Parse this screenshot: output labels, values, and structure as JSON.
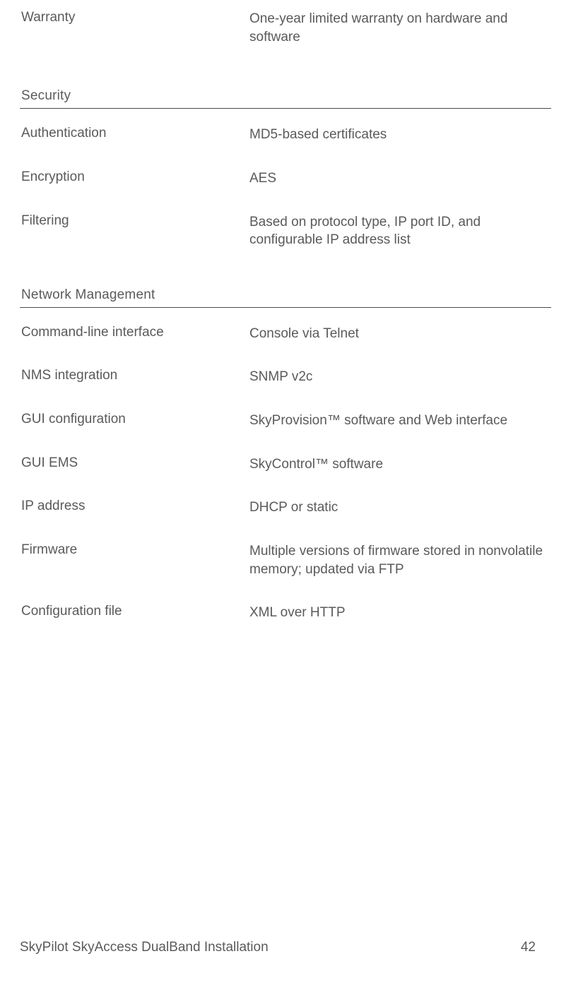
{
  "top": {
    "warranty_label": "Warranty",
    "warranty_value": "One-year limited warranty on hardware and software"
  },
  "security": {
    "header": "Security",
    "rows": [
      {
        "label": "Authentication",
        "value": "MD5-based certificates"
      },
      {
        "label": "Encryption",
        "value": "AES"
      },
      {
        "label": "Filtering",
        "value": "Based on protocol type, IP port ID, and configurable IP address list"
      }
    ]
  },
  "network": {
    "header": "Network Management",
    "rows": [
      {
        "label": "Command-line interface",
        "value": "Console via Telnet"
      },
      {
        "label": "NMS integration",
        "value": "SNMP v2c"
      },
      {
        "label": "GUI configuration",
        "value": "SkyProvision™ software and Web interface"
      },
      {
        "label": "GUI EMS",
        "value": "SkyControl™ software"
      },
      {
        "label": "IP address",
        "value": "DHCP or static"
      },
      {
        "label": "Firmware",
        "value": "Multiple versions of firmware stored in nonvolatile memory; updated via FTP"
      },
      {
        "label": "Configuration file",
        "value": "XML over HTTP"
      }
    ]
  },
  "footer": {
    "title": "SkyPilot SkyAccess DualBand Installation",
    "page": "42"
  },
  "colors": {
    "text": "#5a5a5a",
    "border": "#4a4a4a",
    "background": "#ffffff"
  },
  "font_sizes": {
    "body": 19,
    "header": 19
  }
}
